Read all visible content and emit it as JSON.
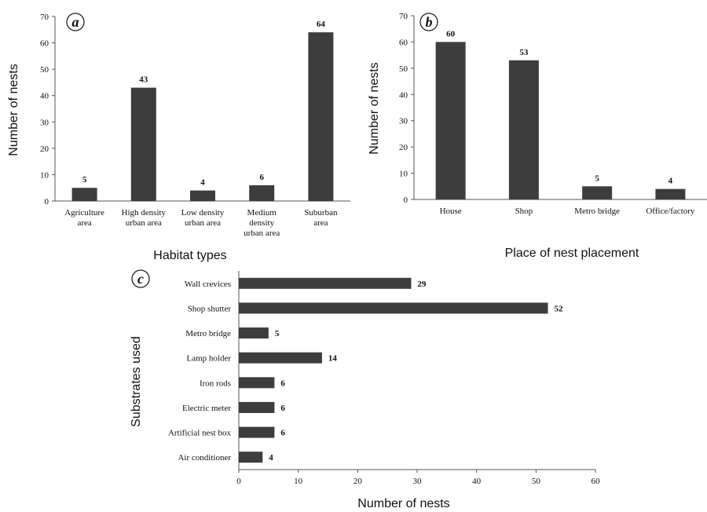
{
  "figure": {
    "bar_color": "#3d3d3d",
    "axis_color": "#555555",
    "text_color": "#111111"
  },
  "chart_data": [
    {
      "panel_label": "a",
      "type": "bar",
      "orientation": "vertical",
      "categories": [
        [
          "Agriculture",
          "area"
        ],
        [
          "High density",
          "urban area"
        ],
        [
          "Low density",
          "urban area"
        ],
        [
          "Medium",
          "density",
          "urban area"
        ],
        [
          "Suburban",
          "area"
        ]
      ],
      "values": [
        5,
        43,
        4,
        6,
        64
      ],
      "data_labels": [
        "5",
        "43",
        "4",
        "6",
        "64"
      ],
      "xlabel": "Habitat types",
      "ylabel": "Number of nests",
      "ylim": [
        0,
        70
      ],
      "yticks": [
        0,
        10,
        20,
        30,
        40,
        50,
        60,
        70
      ],
      "grid": false
    },
    {
      "panel_label": "b",
      "type": "bar",
      "orientation": "vertical",
      "categories": [
        [
          "House"
        ],
        [
          "Shop"
        ],
        [
          "Metro bridge"
        ],
        [
          "Office/factory"
        ]
      ],
      "values": [
        60,
        53,
        5,
        4
      ],
      "data_labels": [
        "60",
        "53",
        "5",
        "4"
      ],
      "xlabel": "Place of nest placement",
      "ylabel": "Number of nests",
      "ylim": [
        0,
        70
      ],
      "yticks": [
        0,
        10,
        20,
        30,
        40,
        50,
        60,
        70
      ],
      "grid": false
    },
    {
      "panel_label": "c",
      "type": "bar",
      "orientation": "horizontal",
      "categories": [
        [
          "Wall crevices"
        ],
        [
          "Shop shutter"
        ],
        [
          "Metro bridge"
        ],
        [
          "Lamp holder"
        ],
        [
          "Iron rods"
        ],
        [
          "Electric meter"
        ],
        [
          "Artificial nest box"
        ],
        [
          "Air conditioner"
        ]
      ],
      "values": [
        29,
        52,
        5,
        14,
        6,
        6,
        6,
        4
      ],
      "data_labels": [
        "29",
        "52",
        "5",
        "14",
        "6",
        "6",
        "6",
        "4"
      ],
      "xlabel": "Number of nests",
      "ylabel": "Substrates used",
      "xlim": [
        0,
        60
      ],
      "xticks": [
        0,
        10,
        20,
        30,
        40,
        50,
        60
      ],
      "grid": false
    }
  ]
}
